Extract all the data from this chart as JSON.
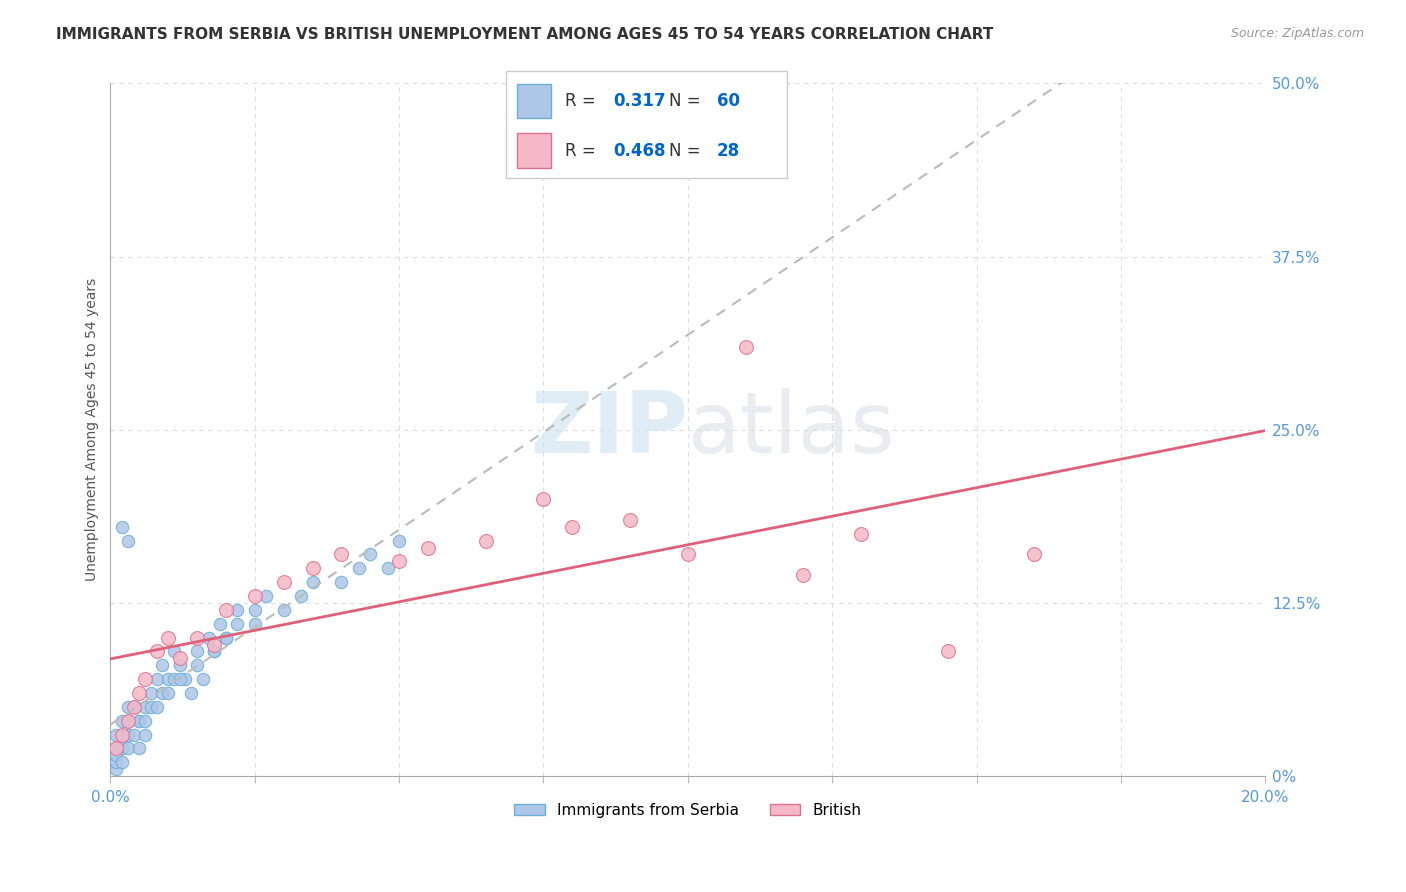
{
  "title": "IMMIGRANTS FROM SERBIA VS BRITISH UNEMPLOYMENT AMONG AGES 45 TO 54 YEARS CORRELATION CHART",
  "source": "Source: ZipAtlas.com",
  "ylabel": "Unemployment Among Ages 45 to 54 years",
  "xlim": [
    0.0,
    0.2
  ],
  "ylim": [
    0.0,
    0.5
  ],
  "blue_R": 0.317,
  "blue_N": 60,
  "pink_R": 0.468,
  "pink_N": 28,
  "blue_color": "#aec6e8",
  "pink_color": "#f4b8c8",
  "blue_edge": "#6baed6",
  "pink_edge": "#e07090",
  "pink_trend_color": "#e0607a",
  "watermark_zip": "ZIP",
  "watermark_atlas": "atlas",
  "background_color": "#ffffff",
  "grid_color": "#dddddd",
  "blue_x": [
    0.002,
    0.003,
    0.004,
    0.005,
    0.006,
    0.007,
    0.008,
    0.009,
    0.01,
    0.011,
    0.012,
    0.013,
    0.014,
    0.015,
    0.016,
    0.017,
    0.018,
    0.019,
    0.02,
    0.022,
    0.025,
    0.027,
    0.03,
    0.033,
    0.035,
    0.04,
    0.043,
    0.045,
    0.048,
    0.05,
    0.001,
    0.001,
    0.002,
    0.002,
    0.003,
    0.003,
    0.004,
    0.005,
    0.006,
    0.007,
    0.008,
    0.009,
    0.01,
    0.011,
    0.012,
    0.015,
    0.018,
    0.02,
    0.022,
    0.025,
    0.001,
    0.001,
    0.001,
    0.002,
    0.002,
    0.003,
    0.003,
    0.004,
    0.005,
    0.006
  ],
  "blue_y": [
    0.18,
    0.17,
    0.05,
    0.04,
    0.05,
    0.06,
    0.07,
    0.08,
    0.07,
    0.09,
    0.08,
    0.07,
    0.06,
    0.08,
    0.07,
    0.1,
    0.09,
    0.11,
    0.1,
    0.12,
    0.11,
    0.13,
    0.12,
    0.13,
    0.14,
    0.14,
    0.15,
    0.16,
    0.15,
    0.17,
    0.02,
    0.03,
    0.03,
    0.04,
    0.04,
    0.05,
    0.05,
    0.04,
    0.04,
    0.05,
    0.05,
    0.06,
    0.06,
    0.07,
    0.07,
    0.09,
    0.09,
    0.1,
    0.11,
    0.12,
    0.005,
    0.01,
    0.015,
    0.01,
    0.02,
    0.02,
    0.03,
    0.03,
    0.02,
    0.03
  ],
  "pink_x": [
    0.001,
    0.002,
    0.003,
    0.004,
    0.005,
    0.006,
    0.008,
    0.01,
    0.012,
    0.015,
    0.018,
    0.02,
    0.025,
    0.03,
    0.035,
    0.04,
    0.05,
    0.055,
    0.065,
    0.075,
    0.08,
    0.09,
    0.1,
    0.11,
    0.12,
    0.13,
    0.145,
    0.16
  ],
  "pink_y": [
    0.02,
    0.03,
    0.04,
    0.05,
    0.06,
    0.07,
    0.09,
    0.1,
    0.085,
    0.1,
    0.095,
    0.12,
    0.13,
    0.14,
    0.15,
    0.16,
    0.155,
    0.165,
    0.17,
    0.2,
    0.18,
    0.185,
    0.16,
    0.31,
    0.145,
    0.175,
    0.09,
    0.16
  ],
  "blue_marker_size": 80,
  "pink_marker_size": 100,
  "legend_labels": [
    "Immigrants from Serbia",
    "British"
  ]
}
